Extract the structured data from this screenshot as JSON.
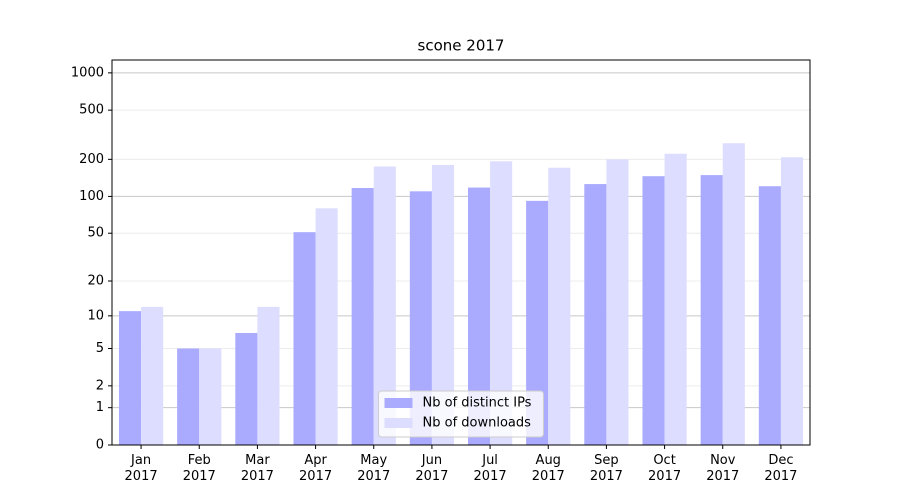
{
  "chart_data": {
    "type": "bar",
    "title": "scone 2017",
    "categories": [
      "Jan\n2017",
      "Feb\n2017",
      "Mar\n2017",
      "Apr\n2017",
      "May\n2017",
      "Jun\n2017",
      "Jul\n2017",
      "Aug\n2017",
      "Sep\n2017",
      "Oct\n2017",
      "Nov\n2017",
      "Dec\n2017"
    ],
    "series": [
      {
        "name": "Nb of distinct IPs",
        "color": "#aaaaff",
        "values": [
          11,
          5,
          7,
          51,
          117,
          110,
          118,
          92,
          126,
          146,
          149,
          121
        ]
      },
      {
        "name": "Nb of downloads",
        "color": "#ddddff",
        "values": [
          12,
          5,
          12,
          80,
          175,
          180,
          193,
          171,
          200,
          222,
          270,
          208
        ]
      }
    ],
    "yscale": "log1p",
    "ylim": [
      0,
      1270
    ],
    "yticks": [
      0,
      1,
      2,
      5,
      10,
      20,
      50,
      100,
      200,
      500,
      1000
    ],
    "grid": true,
    "legend": "lower center"
  }
}
